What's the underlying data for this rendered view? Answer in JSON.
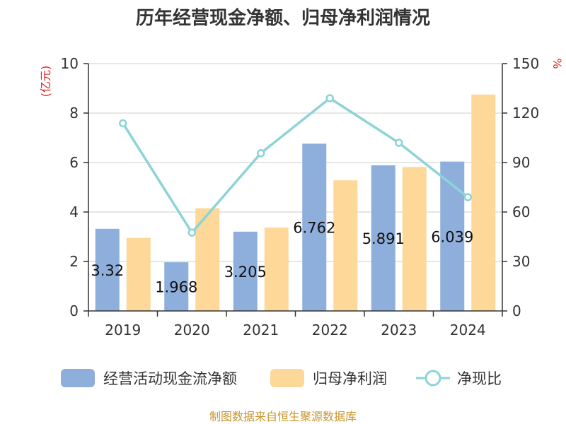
{
  "chart_data": {
    "type": "bar",
    "title": "历年经营现金净额、归母净利润情况",
    "categories": [
      "2019",
      "2020",
      "2021",
      "2022",
      "2023",
      "2024"
    ],
    "series": [
      {
        "name": "经营活动现金流净额",
        "type": "bar",
        "axis": "left",
        "color": "#8eaedb",
        "values": [
          3.32,
          1.968,
          3.205,
          6.762,
          5.891,
          6.039
        ],
        "labels": [
          "3.32",
          "1.968",
          "3.205",
          "6.762",
          "5.891",
          "6.039"
        ]
      },
      {
        "name": "归母净利润",
        "type": "bar",
        "axis": "left",
        "color": "#fdd898",
        "values": [
          2.95,
          4.15,
          3.37,
          5.28,
          5.82,
          8.75
        ]
      },
      {
        "name": "净现比",
        "type": "line",
        "axis": "right",
        "color": "#8dd3d8",
        "values": [
          113.8,
          47.5,
          95.7,
          129.0,
          102.0,
          69.0
        ]
      }
    ],
    "y_left": {
      "unit": "(亿元)",
      "min": 0,
      "max": 10,
      "ticks": [
        "0",
        "2",
        "4",
        "6",
        "8",
        "10"
      ]
    },
    "y_right": {
      "unit": "%",
      "min": 0,
      "max": 150,
      "ticks": [
        "0",
        "30",
        "60",
        "90",
        "120",
        "150"
      ]
    },
    "grid": true,
    "legend_position": "bottom"
  },
  "source": "制图数据来自恒生聚源数据库"
}
